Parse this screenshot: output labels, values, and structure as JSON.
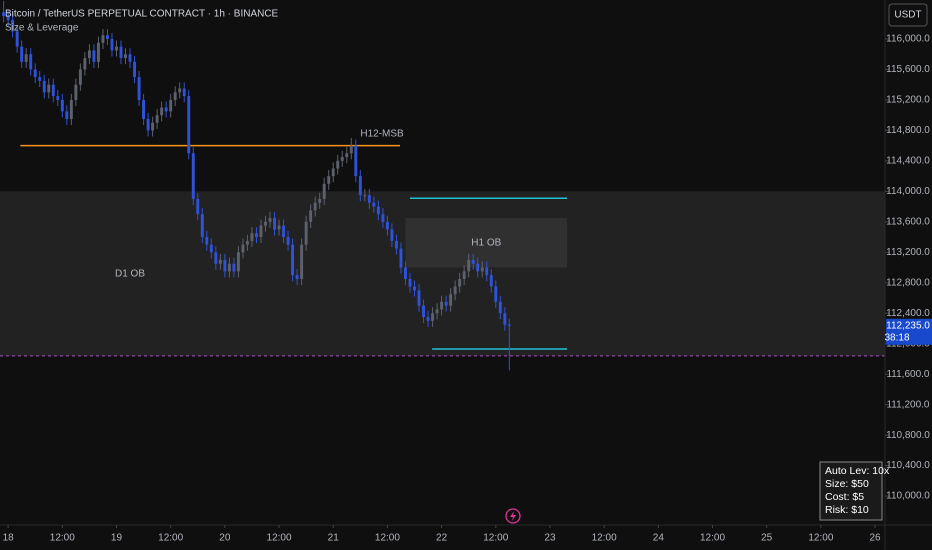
{
  "chart_data": {
    "type": "candlestick",
    "title": "Bitcoin / TetherUS PERPETUAL CONTRACT · 1h · BINANCE",
    "subtitle": "Size & Leverage",
    "currency": "USDT",
    "up_color": "#5d616d",
    "down_color": "#2f52d8",
    "x": [
      -1,
      0,
      1,
      2,
      3,
      4,
      5,
      6,
      7,
      8,
      9,
      10,
      11,
      12,
      13,
      14,
      15,
      16,
      17,
      18,
      19,
      20,
      21,
      22,
      23,
      24,
      25,
      26,
      27,
      28,
      29,
      30,
      31,
      32,
      33,
      34,
      35,
      36,
      37,
      38,
      39,
      40,
      41,
      42,
      43,
      44,
      45,
      46,
      47,
      48,
      49,
      50,
      51,
      52,
      53,
      54,
      55,
      56,
      57,
      58,
      59,
      60,
      61,
      62,
      63,
      64,
      65,
      66,
      67,
      68,
      69,
      70,
      71,
      72,
      73,
      74,
      75,
      76,
      77,
      78,
      79,
      80,
      81,
      82,
      83,
      84,
      85,
      86,
      87,
      88,
      89,
      90,
      91,
      92,
      93,
      94,
      95,
      96,
      97,
      98,
      99,
      100,
      101,
      102,
      103,
      104,
      105,
      106,
      107,
      108,
      109,
      110,
      111
    ],
    "open": [
      116350,
      116300,
      116250,
      116100,
      115900,
      115700,
      115800,
      115600,
      115500,
      115450,
      115300,
      115400,
      115250,
      115200,
      115050,
      114950,
      115200,
      115400,
      115600,
      115750,
      115850,
      115700,
      115950,
      116050,
      116000,
      115850,
      115900,
      115750,
      115800,
      115700,
      115500,
      115200,
      114950,
      114800,
      114900,
      115000,
      115100,
      115050,
      115200,
      115300,
      115350,
      115250,
      114500,
      113900,
      113700,
      113400,
      113300,
      113200,
      113050,
      113100,
      112950,
      113050,
      112950,
      113200,
      113300,
      113350,
      113450,
      113400,
      113550,
      113600,
      113650,
      113500,
      113550,
      113400,
      113300,
      112900,
      112850,
      113300,
      113600,
      113750,
      113850,
      113900,
      114100,
      114200,
      114300,
      114400,
      114450,
      114500,
      114600,
      114200,
      113950,
      113950,
      113850,
      113800,
      113700,
      113600,
      113500,
      113350,
      113250,
      113000,
      112850,
      112750,
      112700,
      112500,
      112350,
      112300,
      112400,
      112450,
      112550,
      112500,
      112650,
      112750,
      112850,
      112950,
      113100,
      113050,
      112950,
      113000,
      112900,
      112750,
      112550,
      112400,
      112250
    ],
    "high": [
      116500,
      116380,
      116330,
      116180,
      115980,
      115880,
      115880,
      115680,
      115580,
      115530,
      115480,
      115480,
      115330,
      115280,
      115130,
      115280,
      115480,
      115680,
      115830,
      115930,
      115930,
      116030,
      116130,
      116130,
      116080,
      115980,
      115980,
      115880,
      115880,
      115780,
      115580,
      115280,
      115030,
      114980,
      115080,
      115180,
      115180,
      115280,
      115380,
      115430,
      115430,
      115330,
      114580,
      113980,
      113780,
      113480,
      113380,
      113280,
      113180,
      113180,
      113130,
      113130,
      113280,
      113380,
      113430,
      113530,
      113530,
      113630,
      113680,
      113730,
      113730,
      113630,
      113630,
      113480,
      113380,
      112980,
      113380,
      113680,
      113830,
      113930,
      113980,
      114180,
      114280,
      114380,
      114480,
      114530,
      114580,
      114700,
      114680,
      114280,
      114030,
      114030,
      113930,
      113880,
      113780,
      113680,
      113580,
      113430,
      113330,
      113080,
      112930,
      112830,
      112780,
      112580,
      112430,
      112480,
      112530,
      112630,
      112630,
      112730,
      112830,
      112930,
      113030,
      113180,
      113180,
      113130,
      113080,
      113080,
      112980,
      112830,
      112630,
      112480,
      112330
    ],
    "low": [
      116220,
      116170,
      116020,
      115820,
      115620,
      115620,
      115520,
      115420,
      115370,
      115220,
      115220,
      115170,
      115120,
      114970,
      114870,
      114870,
      115120,
      115320,
      115520,
      115670,
      115620,
      115620,
      115870,
      115920,
      115770,
      115770,
      115670,
      115670,
      115620,
      115420,
      115120,
      114870,
      114720,
      114720,
      114820,
      114920,
      114970,
      114970,
      115120,
      115220,
      115170,
      114420,
      113820,
      113620,
      113320,
      113220,
      113120,
      112970,
      112970,
      112870,
      112870,
      112870,
      112870,
      113120,
      113220,
      113270,
      113320,
      113320,
      113470,
      113520,
      113420,
      113420,
      113320,
      113220,
      112820,
      112770,
      112770,
      113220,
      113520,
      113670,
      113770,
      113820,
      114020,
      114120,
      114220,
      114320,
      114370,
      114420,
      114120,
      113870,
      113870,
      113770,
      113720,
      113620,
      113520,
      113420,
      113270,
      113170,
      112920,
      112770,
      112670,
      112620,
      112420,
      112270,
      112220,
      112220,
      112320,
      112370,
      112420,
      112420,
      112570,
      112670,
      112770,
      112870,
      112970,
      112870,
      112870,
      112820,
      112670,
      112470,
      112320,
      112170,
      111650
    ],
    "close": [
      116300,
      116250,
      116100,
      115900,
      115700,
      115800,
      115600,
      115500,
      115450,
      115300,
      115400,
      115250,
      115200,
      115050,
      114950,
      115200,
      115400,
      115600,
      115750,
      115850,
      115700,
      115950,
      116050,
      116000,
      115850,
      115900,
      115750,
      115800,
      115700,
      115500,
      115200,
      114950,
      114800,
      114900,
      115000,
      115100,
      115050,
      115200,
      115300,
      115350,
      115250,
      114500,
      113900,
      113700,
      113400,
      113300,
      113200,
      113050,
      113100,
      112950,
      113050,
      112950,
      113200,
      113300,
      113350,
      113450,
      113400,
      113550,
      113600,
      113650,
      113500,
      113550,
      113400,
      113300,
      112900,
      112850,
      113300,
      113600,
      113750,
      113850,
      113900,
      114100,
      114200,
      114300,
      114400,
      114450,
      114500,
      114600,
      114200,
      113950,
      113950,
      113850,
      113800,
      113700,
      113600,
      113500,
      113350,
      113250,
      113000,
      112850,
      112750,
      112700,
      112500,
      112350,
      112300,
      112400,
      112450,
      112550,
      112500,
      112650,
      112750,
      112850,
      112950,
      113100,
      113050,
      112950,
      113000,
      112900,
      112750,
      112550,
      112400,
      112250,
      112235
    ],
    "xlim": [
      -1.8,
      194.2
    ],
    "ylim": [
      109620,
      116512
    ],
    "xticks": [
      {
        "value": 0,
        "label": "18"
      },
      {
        "value": 12,
        "label": "12:00"
      },
      {
        "value": 24,
        "label": "19"
      },
      {
        "value": 36,
        "label": "12:00"
      },
      {
        "value": 48,
        "label": "20"
      },
      {
        "value": 60,
        "label": "12:00"
      },
      {
        "value": 72,
        "label": "21"
      },
      {
        "value": 84,
        "label": "12:00"
      },
      {
        "value": 96,
        "label": "22"
      },
      {
        "value": 108,
        "label": "12:00"
      },
      {
        "value": 120,
        "label": "23"
      },
      {
        "value": 132,
        "label": "12:00"
      },
      {
        "value": 144,
        "label": "24"
      },
      {
        "value": 156,
        "label": "12:00"
      },
      {
        "value": 168,
        "label": "25"
      },
      {
        "value": 180,
        "label": "12:00"
      },
      {
        "value": 192,
        "label": "26"
      }
    ],
    "yticks": [
      {
        "value": 110000,
        "label": "110,000.0"
      },
      {
        "value": 110400,
        "label": "110,400.0"
      },
      {
        "value": 110800,
        "label": "110,800.0"
      },
      {
        "value": 111200,
        "label": "111,200.0"
      },
      {
        "value": 111600,
        "label": "111,600.0"
      },
      {
        "value": 112000,
        "label": "112,000.0"
      },
      {
        "value": 112400,
        "label": "112,400.0"
      },
      {
        "value": 112800,
        "label": "112,800.0"
      },
      {
        "value": 113200,
        "label": "113,200.0"
      },
      {
        "value": 113600,
        "label": "113,600.0"
      },
      {
        "value": 114000,
        "label": "114,000.0"
      },
      {
        "value": 114400,
        "label": "114,400.0"
      },
      {
        "value": 114800,
        "label": "114,800.0"
      },
      {
        "value": 115200,
        "label": "115,200.0"
      },
      {
        "value": 115600,
        "label": "115,600.0"
      },
      {
        "value": 116000,
        "label": "116,000.0"
      }
    ],
    "zones": [
      {
        "label": "D1 OB",
        "y": [
          111840,
          114000
        ],
        "x": [
          -1.8,
          194.2
        ],
        "color": "#262626"
      },
      {
        "label": "H1 OB",
        "y": [
          113000,
          113650
        ],
        "x": [
          88,
          123.8
        ],
        "color": "#333333"
      }
    ],
    "levels": [
      {
        "label": "H12-MSB",
        "y": 114600,
        "x": [
          2.7,
          86.8
        ],
        "color": "#f7931a"
      },
      {
        "y": 113910,
        "x": [
          89,
          123.8
        ],
        "color": "#22c3d6"
      },
      {
        "y": 111930,
        "x": [
          93.9,
          123.8
        ],
        "color": "#22c3d6"
      },
      {
        "y": 111840,
        "x": [
          -1.8,
          194.2
        ],
        "color": "#b24fc9",
        "dashed": true
      }
    ],
    "last_price": {
      "value": 112235,
      "label": "112,235.0",
      "countdown": "38:18",
      "color": "#1848cc"
    },
    "info_box": [
      "Auto Lev: 10x",
      "Size: $50",
      "Cost: $5",
      "Risk: $10"
    ]
  }
}
